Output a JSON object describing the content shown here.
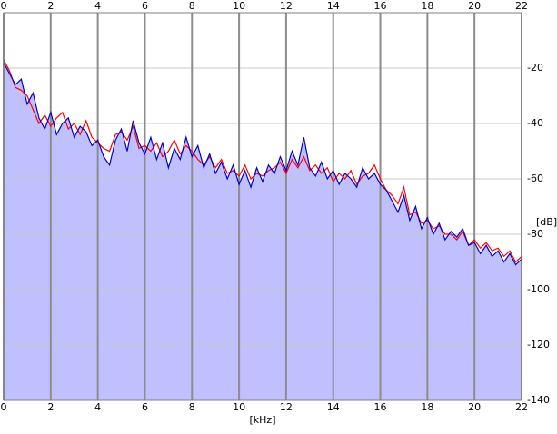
{
  "chart_data": {
    "type": "line",
    "x_label": "[kHz]",
    "y_label": "[dB]",
    "xlim": [
      0,
      22
    ],
    "ylim": [
      -140,
      0
    ],
    "xticks": [
      0,
      2,
      4,
      6,
      8,
      10,
      12,
      14,
      16,
      18,
      20,
      22
    ],
    "yticks": [
      -20,
      -40,
      -60,
      -80,
      -100,
      -120,
      -140
    ],
    "grid": true,
    "fill": "#c0c0ff",
    "x": [
      0,
      0.25,
      0.5,
      0.75,
      1,
      1.25,
      1.5,
      1.75,
      2,
      2.25,
      2.5,
      2.75,
      3,
      3.25,
      3.5,
      3.75,
      4,
      4.25,
      4.5,
      4.75,
      5,
      5.25,
      5.5,
      5.75,
      6,
      6.25,
      6.5,
      6.75,
      7,
      7.25,
      7.5,
      7.75,
      8,
      8.25,
      8.5,
      8.75,
      9,
      9.25,
      9.5,
      9.75,
      10,
      10.25,
      10.5,
      10.75,
      11,
      11.25,
      11.5,
      11.75,
      12,
      12.25,
      12.5,
      12.75,
      13,
      13.25,
      13.5,
      13.75,
      14,
      14.25,
      14.5,
      14.75,
      15,
      15.25,
      15.5,
      15.75,
      16,
      16.25,
      16.5,
      16.75,
      17,
      17.25,
      17.5,
      17.75,
      18,
      18.25,
      18.5,
      18.75,
      19,
      19.25,
      19.5,
      19.75,
      20,
      20.25,
      20.5,
      20.75,
      21,
      21.25,
      21.5,
      21.75,
      22
    ],
    "series": [
      {
        "color": "#ff0000",
        "values": [
          -17,
          -21,
          -27,
          -28,
          -30,
          -35,
          -40,
          -37,
          -41,
          -38,
          -36,
          -42,
          -40,
          -44,
          -39,
          -45,
          -47,
          -49,
          -50,
          -44,
          -43,
          -46,
          -41,
          -49,
          -48,
          -50,
          -47,
          -52,
          -50,
          -46,
          -51,
          -48,
          -50,
          -53,
          -55,
          -52,
          -56,
          -53,
          -58,
          -57,
          -59,
          -55,
          -60,
          -58,
          -59,
          -57,
          -56,
          -54,
          -58,
          -53,
          -56,
          -52,
          -57,
          -55,
          -58,
          -56,
          -61,
          -58,
          -60,
          -57,
          -62,
          -59,
          -58,
          -55,
          -60,
          -64,
          -66,
          -69,
          -63,
          -73,
          -72,
          -76,
          -75,
          -78,
          -77,
          -80,
          -80,
          -82,
          -79,
          -84,
          -82,
          -85,
          -83,
          -86,
          -85,
          -88,
          -86,
          -90,
          -88
        ]
      },
      {
        "color": "#0000cc",
        "values": [
          -18,
          -22,
          -26,
          -24,
          -33,
          -29,
          -38,
          -42,
          -36,
          -44,
          -40,
          -38,
          -45,
          -41,
          -43,
          -48,
          -46,
          -52,
          -55,
          -46,
          -42,
          -50,
          -39,
          -47,
          -51,
          -45,
          -53,
          -47,
          -56,
          -49,
          -53,
          -45,
          -52,
          -48,
          -56,
          -51,
          -58,
          -54,
          -60,
          -55,
          -62,
          -57,
          -63,
          -56,
          -61,
          -55,
          -58,
          -52,
          -57,
          -50,
          -55,
          -45,
          -56,
          -59,
          -54,
          -60,
          -57,
          -62,
          -58,
          -60,
          -63,
          -56,
          -60,
          -58,
          -62,
          -64,
          -68,
          -72,
          -66,
          -75,
          -70,
          -78,
          -74,
          -80,
          -76,
          -82,
          -79,
          -81,
          -78,
          -84,
          -83,
          -87,
          -84,
          -88,
          -86,
          -90,
          -87,
          -91,
          -89
        ]
      }
    ]
  }
}
